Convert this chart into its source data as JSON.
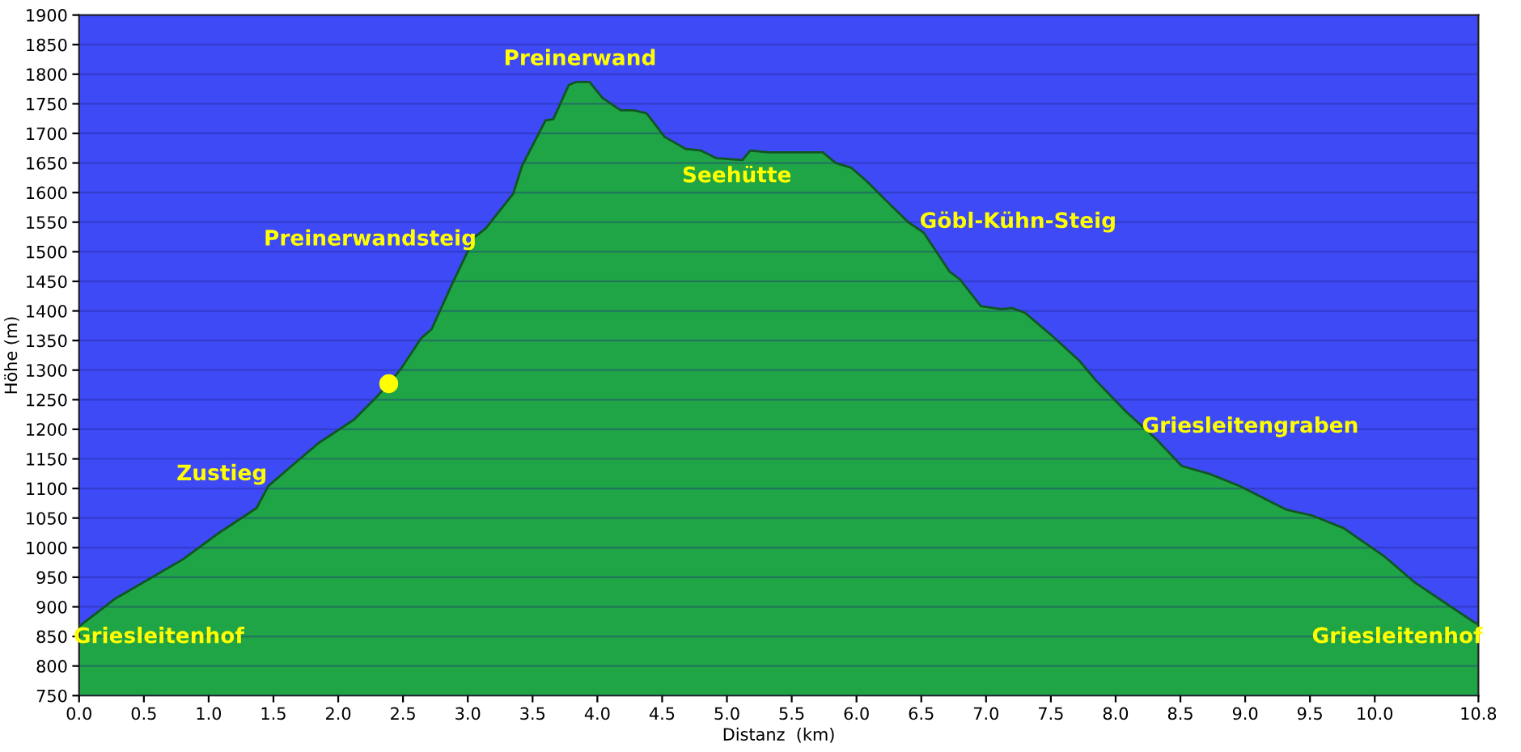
{
  "chart_data": {
    "type": "area",
    "xlabel": "Distanz  (km)",
    "ylabel": "Höhe (m)",
    "series": [
      {
        "color": "#1fa446",
        "x": [
          0,
          0.28,
          0.8,
          1.08,
          1.37,
          1.46,
          1.64,
          1.85,
          2.12,
          2.28,
          2.39,
          2.48,
          2.64,
          2.72,
          2.88,
          3.05,
          3.14,
          3.35,
          3.42,
          3.6,
          3.66,
          3.78,
          3.84,
          3.94,
          4.04,
          4.18,
          4.28,
          4.38,
          4.52,
          4.68,
          4.8,
          4.92,
          5.12,
          5.18,
          5.32,
          5.74,
          5.84,
          5.96,
          6.08,
          6.24,
          6.4,
          6.52,
          6.72,
          6.8,
          6.96,
          7.12,
          7.2,
          7.3,
          7.52,
          7.72,
          7.85,
          8.08,
          8.32,
          8.51,
          8.72,
          8.96,
          9.32,
          9.52,
          9.76,
          10.07,
          10.31,
          10.76,
          10.8
        ],
        "values": [
          867,
          914,
          980,
          1025,
          1067,
          1104,
          1138,
          1177,
          1216,
          1251,
          1277,
          1301,
          1354,
          1369,
          1446,
          1524,
          1540,
          1598,
          1646,
          1722,
          1724,
          1782,
          1787,
          1787,
          1760,
          1739,
          1739,
          1734,
          1694,
          1674,
          1671,
          1658,
          1655,
          1671,
          1668,
          1668,
          1650,
          1642,
          1619,
          1584,
          1550,
          1532,
          1466,
          1453,
          1408,
          1403,
          1405,
          1397,
          1356,
          1316,
          1282,
          1230,
          1182,
          1138,
          1125,
          1104,
          1064,
          1054,
          1033,
          986,
          941,
          875,
          870
        ]
      },
      {
        "type": "scatter",
        "color": "#ffff00",
        "marker": "circle",
        "x": [
          2.39
        ],
        "values": [
          1277
        ]
      }
    ],
    "annotations": [
      "Preinerwand",
      "Preinerwandsteig",
      "Seehütte",
      "Göbl-Kühn-Steig",
      "Zustieg",
      "Griesleitenhof",
      "Griesleitengraben",
      "Griesleitenhof"
    ],
    "xlim": [
      0,
      10.8
    ],
    "xticks": [
      {
        "value": 0,
        "label": "0.0"
      },
      {
        "value": 0.5,
        "label": "0.5"
      },
      {
        "value": 1,
        "label": "1.0"
      },
      {
        "value": 1.5,
        "label": "1.5"
      },
      {
        "value": 2,
        "label": "2.0"
      },
      {
        "value": 2.5,
        "label": "2.5"
      },
      {
        "value": 3,
        "label": "3.0"
      },
      {
        "value": 3.5,
        "label": "3.5"
      },
      {
        "value": 4,
        "label": "4.0"
      },
      {
        "value": 4.5,
        "label": "4.5"
      },
      {
        "value": 5,
        "label": "5.0"
      },
      {
        "value": 5.5,
        "label": "5.5"
      },
      {
        "value": 6,
        "label": "6.0"
      },
      {
        "value": 6.5,
        "label": "6.5"
      },
      {
        "value": 7,
        "label": "7.0"
      },
      {
        "value": 7.5,
        "label": "7.5"
      },
      {
        "value": 8,
        "label": "8.0"
      },
      {
        "value": 8.5,
        "label": "8.5"
      },
      {
        "value": 9,
        "label": "9.0"
      },
      {
        "value": 9.5,
        "label": "9.5"
      },
      {
        "value": 10,
        "label": "10.0"
      },
      10.8
    ],
    "ylim": [
      750,
      1900
    ],
    "yticks": [
      750,
      800,
      850,
      900,
      950,
      1000,
      1050,
      1100,
      1150,
      1200,
      1250,
      1300,
      1350,
      1400,
      1450,
      1500,
      1550,
      1600,
      1650,
      1700,
      1750,
      1800,
      1850,
      1900
    ],
    "grid": "y"
  }
}
